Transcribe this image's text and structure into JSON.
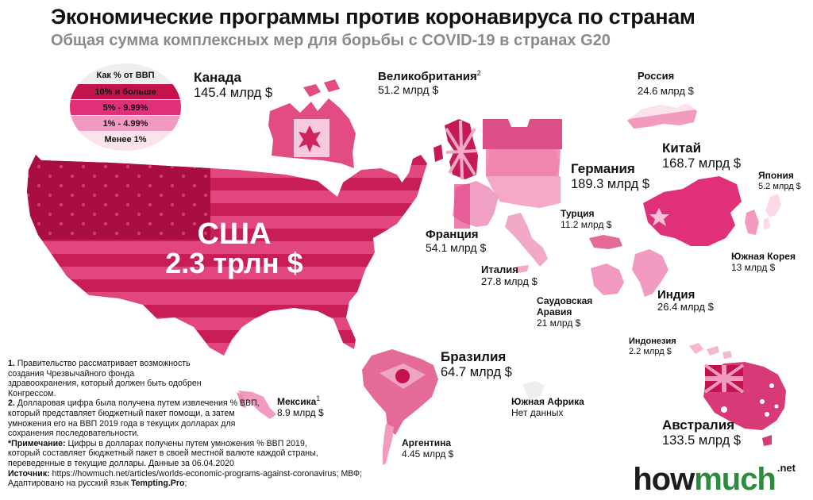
{
  "header": {
    "title": "Экономические программы против коронавируса по странам",
    "subtitle": "Общая сумма комплексных мер для борьбы с COVID-19 в странах G20"
  },
  "legend": {
    "title": "Как % от ВВП",
    "items": [
      {
        "label": "10% и больше",
        "color": "#c4124d"
      },
      {
        "label": "5% - 9.99%",
        "color": "#e0307a"
      },
      {
        "label": "1% - 4.99%",
        "color": "#f39ac1"
      },
      {
        "label": "Менее 1%",
        "color": "#fbe3ee"
      }
    ]
  },
  "countries": {
    "usa": {
      "name": "США",
      "value": "2.3 трлн $"
    },
    "canada": {
      "name": "Канада",
      "value": "145.4 млрд $"
    },
    "uk": {
      "name": "Великобритания",
      "sup": "2",
      "value": "51.2 млрд $"
    },
    "russia": {
      "name": "Россия",
      "value": "24.6 млрд $"
    },
    "germany": {
      "name": "Германия",
      "value": "189.3 млрд $"
    },
    "china": {
      "name": "Китай",
      "value": "168.7 млрд $"
    },
    "japan": {
      "name": "Япония",
      "value": "5.2 млрд $"
    },
    "turkey": {
      "name": "Турция",
      "value": "11.2 млрд $"
    },
    "france": {
      "name": "Франция",
      "value": "54.1 млрд $"
    },
    "italy": {
      "name": "Италия",
      "value": "27.8 млрд $"
    },
    "south_korea": {
      "name": "Южная Корея",
      "value": "13 млрд $"
    },
    "saudi": {
      "name": "Саудовская Аравия",
      "name_line1": "Саудовская",
      "name_line2": "Аравия",
      "value": "21 млрд $"
    },
    "india": {
      "name": "Индия",
      "value": "26.4 млрд $"
    },
    "indonesia": {
      "name": "Индонезия",
      "value": "2.2 млрд $"
    },
    "brazil": {
      "name": "Бразилия",
      "value": "64.7 млрд $"
    },
    "mexico": {
      "name": "Мексика",
      "sup": "1",
      "value": "8.9 млрд $"
    },
    "south_africa": {
      "name": "Южная Африка",
      "value": "Нет данных"
    },
    "argentina": {
      "name": "Аргентина",
      "value": "4.45 млрд $"
    },
    "australia": {
      "name": "Австралия",
      "value": "133.5 млрд $"
    }
  },
  "notes": {
    "n1_num": "1.",
    "n1_text": "Правительство рассматривает возможность создания Чрезвычайного фонда здравоохранения, который должен быть одобрен Конгрессом.",
    "n2_num": "2.",
    "n2_text": "Долларовая цифра была получена путем извлечения % ВВП, который представляет бюджетный пакет помощи, а затем умножения его на ВВП 2019 года в текущих долларах для сохранения последовательности.",
    "remark_label": "*Примечание:",
    "remark_text": "Цифры в долларах получены путем умножения % ВВП 2019, который составляет бюджетный пакет в своей местной валюте каждой страны, переведенные в текущие доллары. Данные за 06.04.2020",
    "source_label": "Источник:",
    "source_text": "https://howmuch.net/articles/worlds-economic-programs-against-coronavirus; МВФ; Адаптировано на русский язык",
    "adapted_by": "Tempting.Pro"
  },
  "logo": {
    "how": "how",
    "much": "much",
    "net": ".net"
  },
  "colors": {
    "dark": "#c4124d",
    "mid": "#e0307a",
    "light": "#f39ac1",
    "pale": "#fbe3ee"
  }
}
